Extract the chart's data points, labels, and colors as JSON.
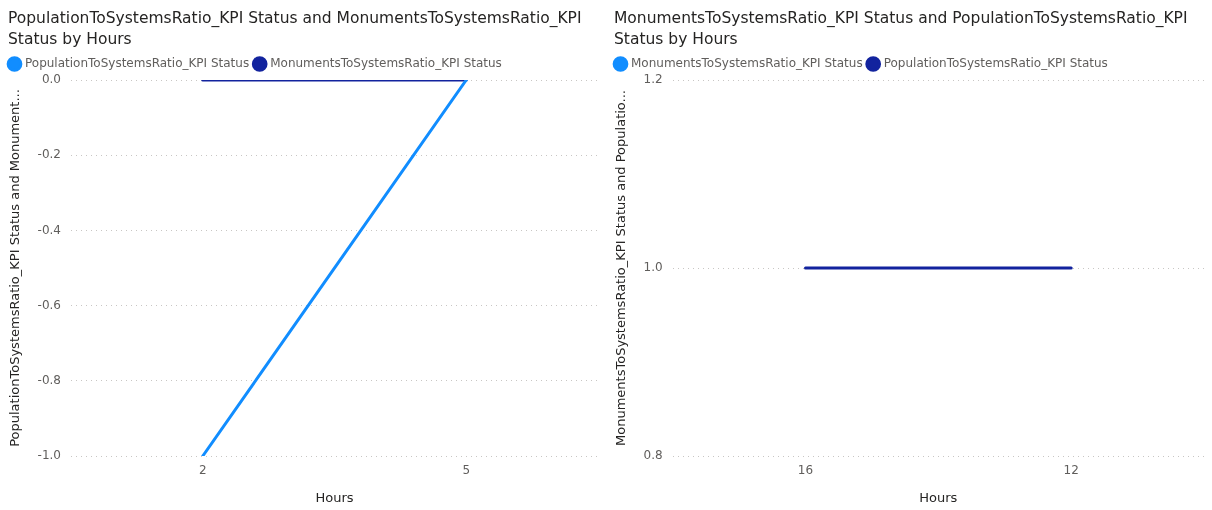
{
  "chart_data": [
    {
      "type": "line",
      "title": "PopulationToSystemsRatio_KPI Status and MonumentsToSystemsRatio_KPI Status by Hours",
      "xlabel": "Hours",
      "ylabel": "PopulationToSystemsRatio_KPI Status and Monument...",
      "categories": [
        "2",
        "5"
      ],
      "series": [
        {
          "name": "PopulationToSystemsRatio_KPI Status",
          "color": "#118dff",
          "values": [
            -1.0,
            0.0
          ]
        },
        {
          "name": "MonumentsToSystemsRatio_KPI Status",
          "color": "#12239e",
          "values": [
            0.0,
            0.0
          ]
        }
      ],
      "ylim": [
        -1.0,
        0.0
      ],
      "yticks": [
        {
          "value": -1.0,
          "label": "-1.0"
        },
        {
          "value": -0.8,
          "label": "-0.8"
        },
        {
          "value": -0.6,
          "label": "-0.6"
        },
        {
          "value": -0.4,
          "label": "-0.4"
        },
        {
          "value": -0.2,
          "label": "-0.2"
        },
        {
          "value": 0.0,
          "label": "0.0"
        }
      ],
      "grid": "y",
      "legend": "top left",
      "marker": "none",
      "line_style": "solid"
    },
    {
      "type": "line",
      "title": "MonumentsToSystemsRatio_KPI Status and PopulationToSystemsRatio_KPI Status by Hours",
      "xlabel": "Hours",
      "ylabel": "MonumentsToSystemsRatio_KPI Status and Populatio...",
      "categories": [
        "16",
        "12"
      ],
      "series": [
        {
          "name": "MonumentsToSystemsRatio_KPI Status",
          "color": "#118dff",
          "values": [
            null,
            null
          ]
        },
        {
          "name": "PopulationToSystemsRatio_KPI Status",
          "color": "#12239e",
          "values": [
            1.0,
            1.0
          ]
        }
      ],
      "ylim": [
        0.8,
        1.2
      ],
      "yticks": [
        {
          "value": 0.8,
          "label": "0.8"
        },
        {
          "value": 1.0,
          "label": "1.0"
        },
        {
          "value": 1.2,
          "label": "1.2"
        }
      ],
      "grid": "y",
      "legend": "top left",
      "marker": "none",
      "line_style": "solid"
    }
  ]
}
